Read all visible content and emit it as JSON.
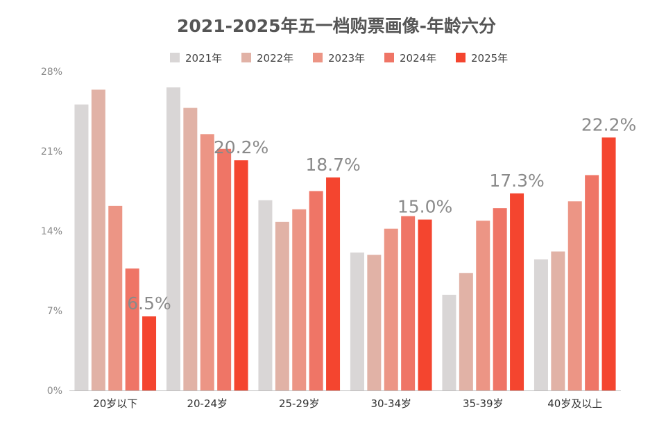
{
  "chart_data": {
    "type": "bar",
    "title": "2021-2025年五一档购票画像-年龄六分",
    "xlabel": "",
    "ylabel": "",
    "categories": [
      "20岁以下",
      "20-24岁",
      "25-29岁",
      "30-34岁",
      "35-39岁",
      "40岁及以上"
    ],
    "series": [
      {
        "name": "2021年",
        "color": "#d9d6d6",
        "values": [
          25.1,
          26.6,
          16.7,
          12.1,
          8.4,
          11.5
        ]
      },
      {
        "name": "2022年",
        "color": "#e1b2a6",
        "values": [
          26.4,
          24.8,
          14.8,
          11.9,
          10.3,
          12.2
        ]
      },
      {
        "name": "2023年",
        "color": "#ec9585",
        "values": [
          16.2,
          22.5,
          15.9,
          14.2,
          14.9,
          16.6
        ]
      },
      {
        "name": "2024年",
        "color": "#ef7566",
        "values": [
          10.7,
          21.2,
          17.5,
          15.3,
          16.0,
          18.9
        ]
      },
      {
        "name": "2025年",
        "color": "#f4452f",
        "values": [
          6.5,
          20.2,
          18.7,
          15.0,
          17.3,
          22.2
        ]
      }
    ],
    "data_labels": [
      "6.5%",
      "20.2%",
      "18.7%",
      "15.0%",
      "17.3%",
      "22.2%"
    ],
    "yticks": [
      0,
      7,
      14,
      21,
      28
    ],
    "ytick_labels": [
      "0%",
      "7%",
      "14%",
      "21%",
      "28%"
    ],
    "ylim": [
      0,
      28
    ],
    "grid": false,
    "legend_position": "top-center"
  }
}
